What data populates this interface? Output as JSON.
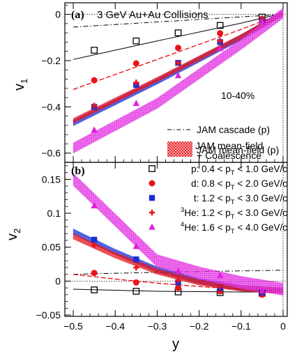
{
  "chart_data": [
    {
      "panel": "(a)",
      "title": "3 GeV Au+Au Collisions",
      "centrality": "10-40%",
      "type": "scatter",
      "ylabel": "v",
      "ylabel_sub": "1",
      "xlim": [
        -0.52,
        0.01
      ],
      "ylim": [
        -0.64,
        0.05
      ],
      "yticks": [
        0,
        -0.2,
        -0.4,
        -0.6
      ],
      "ytick_labels": [
        "0",
        "−0.2",
        "−0.4",
        "−0.6"
      ],
      "series": [
        {
          "label_sym": "p",
          "marker": "square-open",
          "color": "#000000",
          "x": [
            -0.45,
            -0.35,
            -0.25,
            -0.15,
            -0.05
          ],
          "y": [
            -0.155,
            -0.115,
            -0.08,
            -0.048,
            -0.012
          ]
        },
        {
          "label_sym": "d",
          "marker": "circle",
          "color": "#e8141a",
          "x": [
            -0.45,
            -0.35,
            -0.25,
            -0.15,
            -0.05
          ],
          "y": [
            -0.285,
            -0.212,
            -0.145,
            -0.082,
            -0.02
          ]
        },
        {
          "label_sym": "t",
          "marker": "square",
          "color": "#1a2fd6",
          "x": [
            -0.45,
            -0.35,
            -0.25,
            -0.15,
            -0.05
          ],
          "y": [
            -0.4,
            -0.305,
            -0.21,
            -0.12,
            -0.028
          ]
        },
        {
          "label_sym": "3He",
          "marker": "cross",
          "color": "#e8141a",
          "x": [
            -0.45,
            -0.35,
            -0.25,
            -0.15,
            -0.05
          ],
          "y": [
            -0.395,
            -0.295,
            -0.21,
            -0.115,
            -0.025
          ]
        },
        {
          "label_sym": "4He",
          "marker": "triangle",
          "color": "#e020e0",
          "x": [
            -0.45,
            -0.35,
            -0.25,
            -0.15,
            -0.05
          ],
          "y": [
            -0.5,
            -0.385,
            -0.265,
            -0.148,
            -0.032
          ]
        }
      ],
      "models": [
        {
          "name": "JAM cascade (p)",
          "style": "dashdot",
          "color": "#000000",
          "x": [
            -0.5,
            -0.3,
            -0.1,
            0.0
          ],
          "y": [
            -0.055,
            -0.033,
            -0.011,
            0.0
          ]
        },
        {
          "name": "JAM mean-field (p)",
          "style": "solid",
          "color": "#000000",
          "x": [
            -0.5,
            -0.3,
            -0.1,
            0.0
          ],
          "y": [
            -0.195,
            -0.115,
            -0.038,
            0.005
          ]
        },
        {
          "style": "dashed",
          "color": "#e8141a",
          "x": [
            -0.5,
            -0.3,
            -0.1,
            0.0
          ],
          "y": [
            -0.325,
            -0.195,
            -0.065,
            0.005
          ]
        },
        {
          "style": "band",
          "color": "#1a2fd6",
          "width": 0.012,
          "x": [
            -0.5,
            -0.3,
            -0.1,
            0.0
          ],
          "y": [
            -0.47,
            -0.29,
            -0.1,
            0.005
          ]
        },
        {
          "style": "band",
          "color": "#e8141a",
          "width": 0.01,
          "x": [
            -0.5,
            -0.3,
            -0.1,
            0.0
          ],
          "y": [
            -0.46,
            -0.282,
            -0.097,
            0.005
          ]
        },
        {
          "name": "JAM mean-field",
          "name2": "+ Coalescence",
          "style": "band",
          "color": "#e020e0",
          "width": 0.022,
          "x": [
            -0.5,
            -0.3,
            -0.1,
            0.0
          ],
          "y": [
            -0.578,
            -0.385,
            -0.13,
            0.005
          ]
        }
      ]
    },
    {
      "panel": "(b)",
      "type": "scatter",
      "xlabel": "y",
      "ylabel": "v",
      "ylabel_sub": "2",
      "xlim": [
        -0.52,
        0.01
      ],
      "ylim": [
        -0.052,
        0.175
      ],
      "xticks": [
        -0.5,
        -0.4,
        -0.3,
        -0.2,
        -0.1,
        0
      ],
      "xtick_labels": [
        "−0.5",
        "−0.4",
        "−0.3",
        "−0.2",
        "−0.1",
        "0"
      ],
      "yticks": [
        0.15,
        0.1,
        0.05,
        0,
        -0.05
      ],
      "ytick_labels": [
        "0.15",
        "0.1",
        "0.05",
        "0",
        "−0.05"
      ],
      "legend": [
        {
          "marker": "square-open",
          "color": "#000000",
          "parts": [
            "p: 0.4 < p",
            "T",
            " < 1.0 GeV/c"
          ],
          "pre": ""
        },
        {
          "marker": "circle",
          "color": "#e8141a",
          "parts": [
            "d: 0.8 < p",
            "T",
            " < 2.0 GeV/c"
          ],
          "pre": ""
        },
        {
          "marker": "square",
          "color": "#1a2fd6",
          "parts": [
            "t: 1.2 < p",
            "T",
            " < 3.0 GeV/c"
          ],
          "pre": ""
        },
        {
          "marker": "cross",
          "color": "#e8141a",
          "parts": [
            "He: 1.2 < p",
            "T",
            " < 3.0 GeV/c"
          ],
          "pre": "3"
        },
        {
          "marker": "triangle",
          "color": "#e020e0",
          "parts": [
            "He: 1.6 < p",
            "T",
            " < 4.0 GeV/c"
          ],
          "pre": "4"
        }
      ],
      "series": [
        {
          "label_sym": "p",
          "marker": "square-open",
          "color": "#000000",
          "x": [
            -0.45,
            -0.35,
            -0.25,
            -0.15,
            -0.05
          ],
          "y": [
            -0.013,
            -0.015,
            -0.016,
            -0.017,
            -0.018
          ]
        },
        {
          "label_sym": "d",
          "marker": "circle",
          "color": "#e8141a",
          "x": [
            -0.45,
            -0.35,
            -0.25,
            -0.15,
            -0.05
          ],
          "y": [
            0.012,
            -0.002,
            -0.01,
            -0.015,
            -0.02
          ]
        },
        {
          "label_sym": "t",
          "marker": "square",
          "color": "#1a2fd6",
          "x": [
            -0.45,
            -0.35,
            -0.25,
            -0.15,
            -0.05
          ],
          "y": [
            0.061,
            0.032,
            -0.002,
            -0.01,
            -0.017
          ]
        },
        {
          "label_sym": "3He",
          "marker": "cross",
          "color": "#e8141a",
          "x": [
            -0.45,
            -0.35,
            -0.25,
            -0.15,
            -0.05
          ],
          "y": [
            0.053,
            0.02,
            0.001,
            -0.008,
            -0.016
          ]
        },
        {
          "label_sym": "4He",
          "marker": "triangle",
          "color": "#e020e0",
          "x": [
            -0.45,
            -0.35,
            -0.25,
            -0.15,
            -0.05
          ],
          "y": [
            0.111,
            0.051,
            0.015,
            0.008,
            -0.014
          ]
        }
      ],
      "models": [
        {
          "style": "dashdot",
          "color": "#000000",
          "x": [
            -0.5,
            -0.3,
            -0.1,
            0.0
          ],
          "y": [
            0.01,
            0.013,
            0.015,
            0.016
          ]
        },
        {
          "style": "solid",
          "color": "#000000",
          "x": [
            -0.5,
            -0.3,
            -0.1,
            0.0
          ],
          "y": [
            -0.012,
            -0.015,
            -0.016,
            -0.016
          ]
        },
        {
          "style": "dashed",
          "color": "#e8141a",
          "x": [
            -0.5,
            -0.4,
            -0.3,
            -0.2,
            -0.1,
            0.0
          ],
          "y": [
            0.01,
            0.003,
            -0.003,
            -0.008,
            -0.012,
            -0.014
          ]
        },
        {
          "style": "band",
          "color": "#1a2fd6",
          "width": 0.004,
          "x": [
            -0.5,
            -0.4,
            -0.3,
            -0.2,
            -0.1,
            0.0
          ],
          "y": [
            0.073,
            0.043,
            0.017,
            0.0,
            -0.01,
            -0.014
          ]
        },
        {
          "style": "band",
          "color": "#e8141a",
          "width": 0.004,
          "x": [
            -0.5,
            -0.4,
            -0.3,
            -0.2,
            -0.1,
            0.0
          ],
          "y": [
            0.066,
            0.038,
            0.014,
            -0.002,
            -0.011,
            -0.014
          ]
        },
        {
          "style": "band",
          "color": "#e020e0",
          "width": 0.009,
          "x": [
            -0.5,
            -0.4,
            -0.3,
            -0.2,
            -0.1,
            0.0
          ],
          "y": [
            0.15,
            0.09,
            0.03,
            0.012,
            -0.002,
            -0.012
          ]
        }
      ]
    }
  ]
}
